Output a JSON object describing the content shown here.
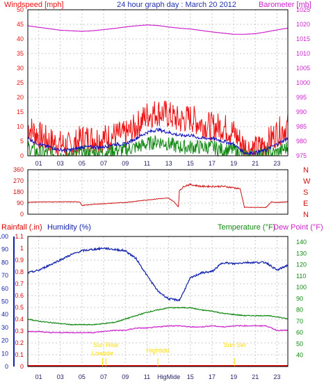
{
  "header": {
    "wind_label": "Windspeed [mph]",
    "title": "24 hour graph day : March 20 2012",
    "baro_label": "Barometer [mb]"
  },
  "colors": {
    "wind_gust": "#ee1111",
    "wind_avg": "#1111bb",
    "wind_low": "#118811",
    "baro": "#cc22cc",
    "direction": "#cc1111",
    "humidity": "#1122aa",
    "temperature": "#118811",
    "dewpoint": "#cc22cc",
    "rain": "#dd0000",
    "sun": "#ffdd00",
    "grid": "#c8c8c8",
    "frame": "#000000"
  },
  "x_ticks": [
    "01",
    "03",
    "05",
    "07",
    "09",
    "11",
    "13",
    "15",
    "17",
    "19",
    "21",
    "23"
  ],
  "bottom_x_ticks": [
    "01",
    "03",
    "05",
    "07",
    "09",
    "11",
    "HigMide",
    "15",
    "17",
    "19",
    "21",
    "23"
  ],
  "chart_data": [
    {
      "type": "line",
      "name": "wind-baro",
      "xlim": [
        0,
        24
      ],
      "left_axis": {
        "label": "Windspeed [mph]",
        "ylim": [
          0,
          50
        ],
        "ticks": [
          0,
          5,
          10,
          15,
          20,
          25,
          30,
          35,
          40,
          45,
          50
        ]
      },
      "right_axis": {
        "label": "Barometer [mb]",
        "ylim": [
          975,
          1025
        ],
        "ticks": [
          975,
          980,
          985,
          990,
          995,
          1000,
          1005,
          1010,
          1015,
          1020,
          1025
        ]
      },
      "x": [
        0,
        1,
        2,
        3,
        4,
        5,
        6,
        7,
        8,
        9,
        10,
        11,
        12,
        13,
        14,
        15,
        16,
        17,
        18,
        19,
        20,
        21,
        22,
        23,
        24
      ],
      "series": [
        {
          "key": "gust",
          "axis": "left",
          "values": [
            10,
            7,
            5,
            4,
            3,
            6,
            6,
            6,
            7,
            7,
            10,
            14,
            15,
            14,
            12,
            13,
            11,
            10,
            10,
            8,
            3,
            2,
            4,
            8,
            10
          ]
        },
        {
          "key": "avg",
          "axis": "left",
          "values": [
            6,
            4,
            3,
            2,
            2,
            3,
            3,
            3,
            4,
            4,
            6,
            8,
            9,
            8,
            7,
            7,
            6,
            6,
            5,
            4,
            1,
            1,
            2,
            4,
            6
          ]
        },
        {
          "key": "low",
          "axis": "left",
          "values": [
            3,
            1,
            1,
            0,
            0,
            1,
            1,
            1,
            2,
            2,
            3,
            4,
            5,
            4,
            3,
            3,
            3,
            3,
            2,
            2,
            0,
            0,
            1,
            1,
            3
          ]
        },
        {
          "key": "baro",
          "axis": "right",
          "values": [
            1019.5,
            1019,
            1018.5,
            1018,
            1017.8,
            1017.6,
            1017.8,
            1018.2,
            1018.6,
            1019.1,
            1019.5,
            1019.8,
            1019.6,
            1019.1,
            1018.7,
            1018.4,
            1017.9,
            1017.4,
            1017,
            1016.6,
            1016.6,
            1016.8,
            1017.4,
            1018.1,
            1018.7
          ]
        }
      ]
    },
    {
      "type": "line",
      "name": "wind-direction",
      "xlim": [
        0,
        24
      ],
      "left_axis": {
        "ylim": [
          0,
          360
        ],
        "ticks": [
          0,
          90,
          180,
          270,
          360
        ]
      },
      "right_axis": {
        "labels": [
          "N",
          "W",
          "S",
          "E",
          "N"
        ]
      },
      "x": [
        0,
        1,
        2,
        3,
        4,
        4.8,
        5,
        6,
        7,
        8,
        9,
        10,
        11,
        12,
        13,
        13.5,
        13.9,
        14,
        14.5,
        15,
        16,
        17,
        18,
        19,
        19.6,
        20,
        21,
        22,
        22.5,
        23,
        24
      ],
      "series": [
        {
          "key": "direction",
          "values": [
            95,
            100,
            100,
            100,
            100,
            100,
            70,
            80,
            85,
            90,
            95,
            105,
            115,
            125,
            130,
            100,
            60,
            195,
            230,
            240,
            225,
            225,
            225,
            215,
            205,
            55,
            55,
            55,
            100,
            95,
            100
          ]
        }
      ]
    },
    {
      "type": "line",
      "name": "hum-temp-rain",
      "xlim": [
        0,
        24
      ],
      "labels": {
        "rain": "Rainfall (.in)",
        "humidity": "Humidity (%)",
        "temperature": "Temperature (°F)",
        "dewpoint": "Dew Point (°F)"
      },
      "rain_axis": {
        "ylim": [
          0,
          1.1
        ],
        "ticks": [
          0,
          0.1,
          0.2,
          0.3,
          0.4,
          0.5,
          0.6,
          0.7,
          0.8,
          0.9,
          1,
          1.1
        ]
      },
      "humidity_axis": {
        "ylim": [
          0,
          100
        ],
        "ticks": [
          0,
          10,
          20,
          30,
          40,
          50,
          60,
          70,
          80,
          90,
          100
        ]
      },
      "temp_axis": {
        "ylim": [
          30,
          145
        ],
        "ticks": [
          40,
          50,
          60,
          70,
          80,
          90,
          100,
          110,
          120,
          130,
          140
        ]
      },
      "x": [
        0,
        1,
        2,
        3,
        4,
        5,
        6,
        7,
        8,
        9,
        10,
        11,
        12,
        13,
        14,
        15,
        16,
        17,
        18,
        19,
        20,
        21,
        22,
        23,
        24
      ],
      "series": [
        {
          "key": "humidity",
          "axis": "humidity",
          "values": [
            72,
            74,
            78,
            82,
            86,
            89,
            90,
            91,
            90,
            89,
            83,
            70,
            58,
            52,
            51,
            68,
            72,
            73,
            80,
            79,
            80,
            80,
            80,
            74,
            78
          ]
        },
        {
          "key": "temperature",
          "axis": "temp",
          "values": [
            72,
            70,
            69,
            68,
            67,
            67,
            67,
            68,
            69,
            72,
            75,
            78,
            80,
            82,
            82,
            82,
            80,
            79,
            77,
            76,
            75,
            75,
            75,
            74,
            72
          ]
        },
        {
          "key": "dewpoint",
          "axis": "temp",
          "values": [
            61,
            61,
            60,
            60,
            60,
            60,
            60,
            61,
            62,
            62,
            64,
            64,
            65,
            66,
            66,
            65,
            65,
            66,
            65,
            66,
            66,
            66,
            66,
            62,
            62
          ]
        },
        {
          "key": "rain",
          "axis": "rain",
          "values": [
            0,
            0,
            0,
            0,
            0,
            0,
            0,
            0,
            0,
            0,
            0,
            0,
            0,
            0,
            0,
            0,
            0,
            0,
            0,
            0,
            0,
            0,
            0,
            0,
            0
          ]
        }
      ],
      "annotations": [
        {
          "text": "Lowtide",
          "x": 6.9
        },
        {
          "text": "Sun Rise",
          "x": 7.2
        },
        {
          "text": "Hightide",
          "x": 12.0
        },
        {
          "text": "Sun Set",
          "x": 19.1
        }
      ]
    }
  ]
}
